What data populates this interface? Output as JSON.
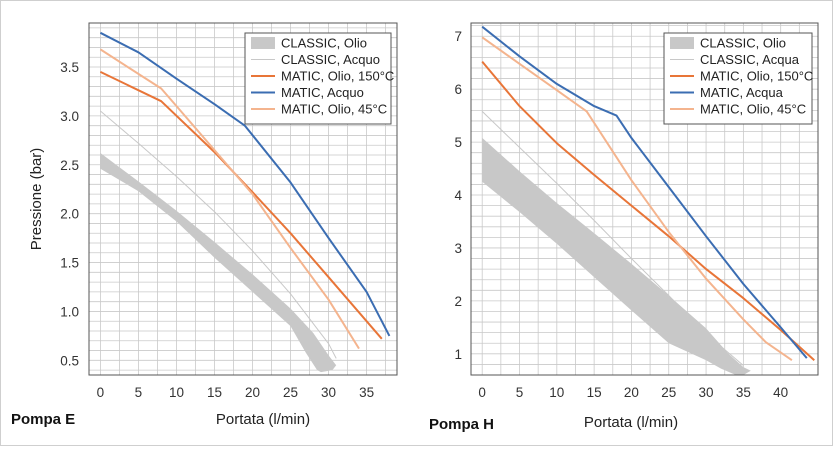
{
  "chart_data": [
    {
      "type": "line",
      "pump_label": "Pompa E",
      "xlabel": "Portata (l/min)",
      "ylabel": "Pressione (bar)",
      "xlim": [
        -1.5,
        39
      ],
      "ylim": [
        0.35,
        3.95
      ],
      "x_ticks": [
        0,
        5,
        10,
        15,
        20,
        25,
        30,
        35
      ],
      "x_tick_labels": [
        "0",
        "5",
        "10",
        "15",
        "20",
        "25",
        "30",
        "35"
      ],
      "y_ticks": [
        0.5,
        1.0,
        1.5,
        2.0,
        2.5,
        3.0,
        3.5
      ],
      "y_tick_labels": [
        "0.5",
        "1.0",
        "1.5",
        "2.0",
        "2.5",
        "3.0",
        "3.5"
      ],
      "y_minor_step": 0.1,
      "x_minor_step": 2.5,
      "grid": true,
      "legend_position": "top-right",
      "series": [
        {
          "name": "CLASSIC, Olio",
          "kind": "band",
          "color": "#c8c8c8",
          "upper": [
            [
              0,
              2.62
            ],
            [
              5,
              2.33
            ],
            [
              10,
              2.03
            ],
            [
              15,
              1.71
            ],
            [
              20,
              1.38
            ],
            [
              25,
              1.03
            ],
            [
              28,
              0.78
            ],
            [
              30,
              0.55
            ],
            [
              31,
              0.45
            ]
          ],
          "lower": [
            [
              31,
              0.45
            ],
            [
              30.5,
              0.4
            ],
            [
              29,
              0.38
            ],
            [
              28.5,
              0.4
            ],
            [
              27,
              0.58
            ],
            [
              25,
              0.85
            ],
            [
              20,
              1.2
            ],
            [
              15,
              1.55
            ],
            [
              10,
              1.92
            ],
            [
              5,
              2.23
            ],
            [
              0,
              2.46
            ]
          ]
        },
        {
          "name": "CLASSIC, Acquo",
          "kind": "line",
          "color": "#c8c8c8",
          "width": 1,
          "points": [
            [
              0,
              3.05
            ],
            [
              5,
              2.72
            ],
            [
              10,
              2.38
            ],
            [
              15,
              2.02
            ],
            [
              20,
              1.62
            ],
            [
              25,
              1.18
            ],
            [
              30,
              0.67
            ],
            [
              31,
              0.52
            ]
          ]
        },
        {
          "name": "MATIC, Olio, 150°C",
          "kind": "line",
          "color": "#e87538",
          "width": 2,
          "points": [
            [
              0,
              3.45
            ],
            [
              8,
              3.15
            ],
            [
              15,
              2.63
            ],
            [
              20,
              2.22
            ],
            [
              25,
              1.8
            ],
            [
              30,
              1.35
            ],
            [
              37,
              0.72
            ]
          ]
        },
        {
          "name": "MATIC, Acquo",
          "kind": "line",
          "color": "#3b6db2",
          "width": 2,
          "points": [
            [
              0,
              3.85
            ],
            [
              5,
              3.65
            ],
            [
              10,
              3.38
            ],
            [
              15,
              3.12
            ],
            [
              19,
              2.9
            ],
            [
              25,
              2.32
            ],
            [
              30,
              1.75
            ],
            [
              35,
              1.2
            ],
            [
              38,
              0.75
            ]
          ]
        },
        {
          "name": "MATIC, Olio, 45°C",
          "kind": "line",
          "color": "#f4b48e",
          "width": 2,
          "points": [
            [
              0,
              3.68
            ],
            [
              8,
              3.28
            ],
            [
              10,
              3.1
            ],
            [
              15,
              2.65
            ],
            [
              20,
              2.2
            ],
            [
              25,
              1.65
            ],
            [
              30,
              1.12
            ],
            [
              34,
              0.62
            ]
          ]
        }
      ]
    },
    {
      "type": "line",
      "pump_label": "Pompa H",
      "xlabel": "Portata (l/min)",
      "ylabel": "",
      "xlim": [
        -1.5,
        45
      ],
      "ylim": [
        0.6,
        7.25
      ],
      "x_ticks": [
        0,
        5,
        10,
        15,
        20,
        25,
        30,
        35,
        40
      ],
      "x_tick_labels": [
        "0",
        "5",
        "10",
        "15",
        "20",
        "25",
        "30",
        "35",
        "40"
      ],
      "y_ticks": [
        1,
        2,
        3,
        4,
        5,
        6,
        7
      ],
      "y_tick_labels": [
        "1",
        "2",
        "3",
        "4",
        "5",
        "6",
        "7"
      ],
      "y_minor_step": 0.2,
      "x_minor_step": 2.5,
      "grid": true,
      "legend_position": "top-right",
      "series": [
        {
          "name": "CLASSIC, Olio",
          "kind": "band",
          "color": "#c8c8c8",
          "upper": [
            [
              0,
              5.08
            ],
            [
              5,
              4.45
            ],
            [
              10,
              3.85
            ],
            [
              15,
              3.28
            ],
            [
              20,
              2.7
            ],
            [
              25,
              2.1
            ],
            [
              30,
              1.48
            ],
            [
              33,
              1.0
            ],
            [
              35,
              0.75
            ],
            [
              36,
              0.68
            ]
          ],
          "lower": [
            [
              36,
              0.68
            ],
            [
              35,
              0.6
            ],
            [
              34,
              0.6
            ],
            [
              32,
              0.72
            ],
            [
              30,
              0.88
            ],
            [
              25,
              1.2
            ],
            [
              20,
              1.82
            ],
            [
              15,
              2.45
            ],
            [
              10,
              3.08
            ],
            [
              5,
              3.68
            ],
            [
              0,
              4.25
            ]
          ]
        },
        {
          "name": "CLASSIC, Acqua",
          "kind": "line",
          "color": "#c8c8c8",
          "width": 1,
          "points": [
            [
              0,
              5.58
            ],
            [
              5,
              4.9
            ],
            [
              10,
              4.22
            ],
            [
              15,
              3.52
            ],
            [
              20,
              2.8
            ],
            [
              25,
              2.1
            ],
            [
              30,
              1.38
            ],
            [
              35,
              0.78
            ]
          ]
        },
        {
          "name": "MATIC, Olio, 150°C",
          "kind": "line",
          "color": "#e87538",
          "width": 2,
          "points": [
            [
              0,
              6.52
            ],
            [
              5,
              5.68
            ],
            [
              10,
              4.98
            ],
            [
              15,
              4.38
            ],
            [
              20,
              3.8
            ],
            [
              25,
              3.22
            ],
            [
              30,
              2.6
            ],
            [
              35,
              2.05
            ],
            [
              40,
              1.45
            ],
            [
              44.5,
              0.88
            ]
          ]
        },
        {
          "name": "MATIC, Acqua",
          "kind": "line",
          "color": "#3b6db2",
          "width": 2,
          "points": [
            [
              0,
              7.18
            ],
            [
              5,
              6.62
            ],
            [
              10,
              6.1
            ],
            [
              15,
              5.68
            ],
            [
              18,
              5.5
            ],
            [
              20,
              5.08
            ],
            [
              25,
              4.15
            ],
            [
              30,
              3.22
            ],
            [
              35,
              2.32
            ],
            [
              40,
              1.5
            ],
            [
              43.5,
              0.92
            ]
          ]
        },
        {
          "name": "MATIC, Olio, 45°C",
          "kind": "line",
          "color": "#f4b48e",
          "width": 2,
          "points": [
            [
              0,
              6.98
            ],
            [
              5,
              6.48
            ],
            [
              10,
              5.98
            ],
            [
              14,
              5.58
            ],
            [
              20,
              4.28
            ],
            [
              25,
              3.3
            ],
            [
              30,
              2.42
            ],
            [
              35,
              1.65
            ],
            [
              38,
              1.22
            ],
            [
              41.5,
              0.88
            ]
          ]
        }
      ]
    }
  ]
}
